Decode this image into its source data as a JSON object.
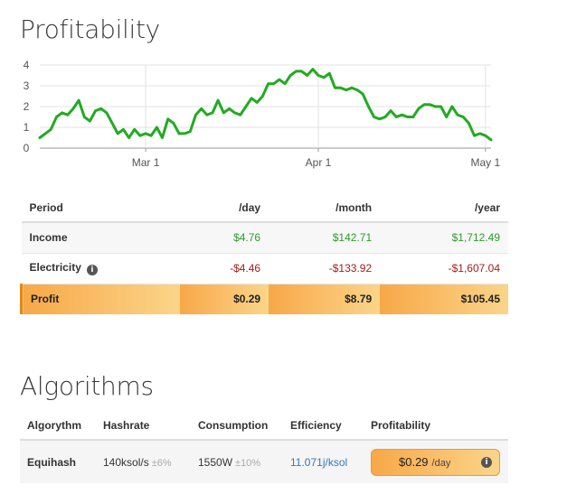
{
  "headings": {
    "profitability": "Profitability",
    "algorithms": "Algorithms"
  },
  "chart_data": {
    "type": "line",
    "y_ticks": [
      "0",
      "1",
      "2",
      "3",
      "4"
    ],
    "x_ticks": [
      {
        "label": "Mar 1",
        "x": 19
      },
      {
        "label": "Apr 1",
        "x": 50
      },
      {
        "label": "May 1",
        "x": 80
      }
    ],
    "xlim": [
      0,
      81
    ],
    "ylim": [
      0,
      4
    ],
    "grid": true,
    "color": "#22aa22",
    "x": [
      0,
      1,
      2,
      3,
      4,
      5,
      6,
      7,
      8,
      9,
      10,
      11,
      12,
      13,
      14,
      15,
      16,
      17,
      18,
      19,
      20,
      21,
      22,
      23,
      24,
      25,
      26,
      27,
      28,
      29,
      30,
      31,
      32,
      33,
      34,
      35,
      36,
      37,
      38,
      39,
      40,
      41,
      42,
      43,
      44,
      45,
      46,
      47,
      48,
      49,
      50,
      51,
      52,
      53,
      54,
      55,
      56,
      57,
      58,
      59,
      60,
      61,
      62,
      63,
      64,
      65,
      66,
      67,
      68,
      69,
      70,
      71,
      72,
      73,
      74,
      75,
      76,
      77,
      78,
      79,
      80,
      81
    ],
    "y": [
      0.5,
      0.7,
      0.9,
      1.5,
      1.7,
      1.6,
      1.9,
      2.3,
      1.5,
      1.3,
      1.8,
      1.9,
      1.7,
      1.2,
      0.7,
      0.9,
      0.5,
      0.9,
      0.6,
      0.7,
      0.6,
      1.0,
      0.5,
      1.4,
      1.2,
      0.7,
      0.7,
      0.8,
      1.6,
      1.9,
      1.6,
      1.7,
      2.3,
      1.7,
      1.9,
      1.7,
      1.6,
      2.0,
      2.4,
      2.2,
      2.5,
      3.1,
      3.1,
      3.3,
      3.1,
      3.5,
      3.7,
      3.7,
      3.5,
      3.8,
      3.5,
      3.4,
      3.6,
      2.9,
      2.9,
      2.8,
      2.9,
      2.8,
      2.6,
      2.0,
      1.5,
      1.4,
      1.5,
      1.8,
      1.5,
      1.6,
      1.5,
      1.5,
      1.9,
      2.1,
      2.1,
      2.0,
      2.0,
      1.5,
      2.0,
      1.6,
      1.5,
      1.2,
      0.6,
      0.7,
      0.6,
      0.4
    ]
  },
  "profit_table": {
    "headers": [
      "Period",
      "/day",
      "/month",
      "/year"
    ],
    "rows": [
      {
        "label": "Income",
        "day": "$4.76",
        "month": "$142.71",
        "year": "$1,712.49"
      },
      {
        "label": "Electricity",
        "day": "-$4.46",
        "month": "-$133.92",
        "year": "-$1,607.04"
      },
      {
        "label": "Profit",
        "day": "$0.29",
        "month": "$8.79",
        "year": "$105.45"
      }
    ]
  },
  "algo_table": {
    "headers": [
      "Algorythm",
      "Hashrate",
      "Consumption",
      "Efficiency",
      "Profitability"
    ],
    "row": {
      "algorithm": "Equihash",
      "hashrate": "140ksol/s",
      "hashrate_tol": "±6%",
      "consumption": "1550W",
      "consumption_tol": "±10%",
      "efficiency": "11.071j/ksol",
      "profit": "$0.29",
      "profit_per": "/day"
    }
  },
  "icons": {
    "info": "i"
  }
}
